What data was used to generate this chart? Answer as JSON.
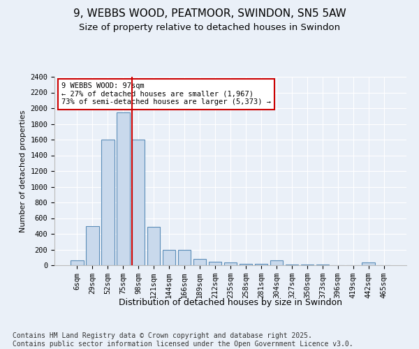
{
  "title1": "9, WEBBS WOOD, PEATMOOR, SWINDON, SN5 5AW",
  "title2": "Size of property relative to detached houses in Swindon",
  "xlabel": "Distribution of detached houses by size in Swindon",
  "ylabel": "Number of detached properties",
  "categories": [
    "6sqm",
    "29sqm",
    "52sqm",
    "75sqm",
    "98sqm",
    "121sqm",
    "144sqm",
    "166sqm",
    "189sqm",
    "212sqm",
    "235sqm",
    "258sqm",
    "281sqm",
    "304sqm",
    "327sqm",
    "350sqm",
    "373sqm",
    "396sqm",
    "419sqm",
    "442sqm",
    "465sqm"
  ],
  "values": [
    65,
    500,
    1600,
    1950,
    1600,
    490,
    200,
    195,
    80,
    45,
    35,
    20,
    15,
    60,
    10,
    10,
    10,
    0,
    0,
    40,
    0
  ],
  "bar_color": "#c9d9ec",
  "bar_edge_color": "#5b8db8",
  "vline_index": 4,
  "vline_color": "#cc0000",
  "annotation_text": "9 WEBBS WOOD: 97sqm\n← 27% of detached houses are smaller (1,967)\n73% of semi-detached houses are larger (5,373) →",
  "annotation_box_color": "#ffffff",
  "annotation_box_edge": "#cc0000",
  "ylim": [
    0,
    2400
  ],
  "yticks": [
    0,
    200,
    400,
    600,
    800,
    1000,
    1200,
    1400,
    1600,
    1800,
    2000,
    2200,
    2400
  ],
  "footer": "Contains HM Land Registry data © Crown copyright and database right 2025.\nContains public sector information licensed under the Open Government Licence v3.0.",
  "bg_color": "#eaf0f8",
  "grid_color": "#ffffff",
  "title_fontsize": 11,
  "subtitle_fontsize": 9.5,
  "tick_fontsize": 7.5,
  "footer_fontsize": 7
}
